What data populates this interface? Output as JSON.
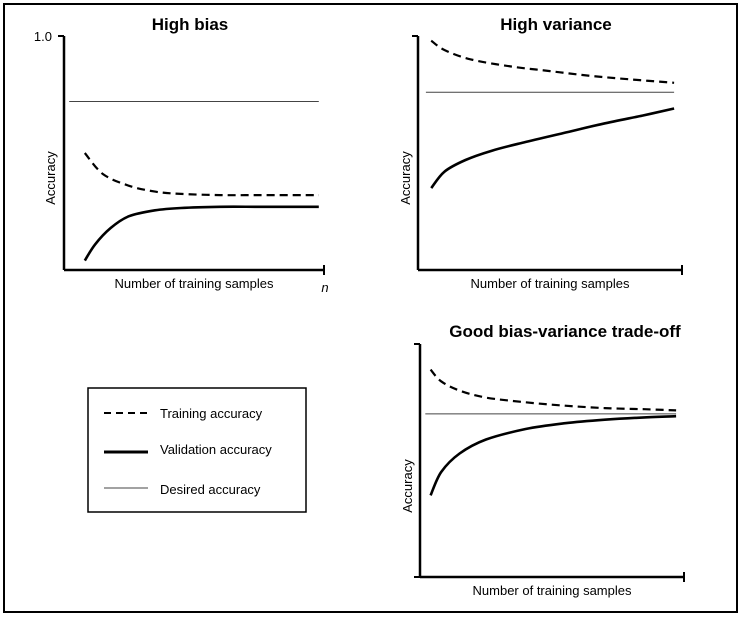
{
  "colors": {
    "ink": "#000000",
    "desired": "#444444",
    "background": "#ffffff"
  },
  "legend": {
    "items": [
      {
        "label": "Training accuracy",
        "style": "dashed"
      },
      {
        "label": "Validation accuracy",
        "style": "solid"
      },
      {
        "label": "Desired accuracy",
        "style": "thin"
      }
    ]
  },
  "chart_data": [
    {
      "type": "line",
      "title": "High bias",
      "xlabel": "Number of training samples",
      "ylabel": "Accuracy",
      "ytick_label": "1.0",
      "xtick_label": "n",
      "xlim": [
        0,
        1
      ],
      "ylim": [
        0,
        1
      ],
      "grid": false,
      "series": [
        {
          "name": "Training accuracy",
          "style": "dashed",
          "x": [
            0.08,
            0.15,
            0.25,
            0.35,
            0.45,
            0.6,
            0.75,
            0.9,
            0.98
          ],
          "y": [
            0.5,
            0.41,
            0.36,
            0.335,
            0.325,
            0.32,
            0.32,
            0.32,
            0.32
          ]
        },
        {
          "name": "Validation accuracy",
          "style": "solid",
          "x": [
            0.08,
            0.12,
            0.18,
            0.25,
            0.35,
            0.45,
            0.6,
            0.75,
            0.9,
            0.98
          ],
          "y": [
            0.04,
            0.11,
            0.18,
            0.23,
            0.255,
            0.265,
            0.27,
            0.27,
            0.27,
            0.27
          ]
        },
        {
          "name": "Desired accuracy",
          "style": "thin",
          "x": [
            0.02,
            0.98
          ],
          "y": [
            0.72,
            0.72
          ]
        }
      ]
    },
    {
      "type": "line",
      "title": "High variance",
      "xlabel": "Number of training samples",
      "ylabel": "Accuracy",
      "xlim": [
        0,
        1
      ],
      "ylim": [
        0,
        1
      ],
      "grid": false,
      "series": [
        {
          "name": "Training accuracy",
          "style": "dashed",
          "x": [
            0.05,
            0.1,
            0.2,
            0.35,
            0.5,
            0.65,
            0.8,
            0.97
          ],
          "y": [
            0.98,
            0.94,
            0.9,
            0.87,
            0.85,
            0.83,
            0.815,
            0.8
          ]
        },
        {
          "name": "Validation accuracy",
          "style": "solid",
          "x": [
            0.05,
            0.1,
            0.18,
            0.28,
            0.4,
            0.55,
            0.7,
            0.85,
            0.97
          ],
          "y": [
            0.35,
            0.42,
            0.47,
            0.51,
            0.545,
            0.585,
            0.625,
            0.66,
            0.69
          ]
        },
        {
          "name": "Desired accuracy",
          "style": "thin",
          "x": [
            0.03,
            0.97
          ],
          "y": [
            0.76,
            0.76
          ]
        }
      ]
    },
    {
      "type": "line",
      "title": "Good bias-variance trade-off",
      "xlabel": "Number of training samples",
      "ylabel": "Accuracy",
      "xlim": [
        0,
        1
      ],
      "ylim": [
        0,
        1
      ],
      "grid": false,
      "series": [
        {
          "name": "Training accuracy",
          "style": "dashed",
          "x": [
            0.04,
            0.08,
            0.15,
            0.25,
            0.4,
            0.55,
            0.7,
            0.85,
            0.97
          ],
          "y": [
            0.89,
            0.84,
            0.8,
            0.77,
            0.75,
            0.735,
            0.725,
            0.72,
            0.715
          ]
        },
        {
          "name": "Validation accuracy",
          "style": "solid",
          "x": [
            0.04,
            0.08,
            0.15,
            0.25,
            0.4,
            0.55,
            0.7,
            0.85,
            0.97
          ],
          "y": [
            0.35,
            0.45,
            0.53,
            0.59,
            0.635,
            0.66,
            0.675,
            0.685,
            0.69
          ]
        },
        {
          "name": "Desired accuracy",
          "style": "thin",
          "x": [
            0.02,
            0.97
          ],
          "y": [
            0.7,
            0.7
          ]
        }
      ]
    }
  ]
}
